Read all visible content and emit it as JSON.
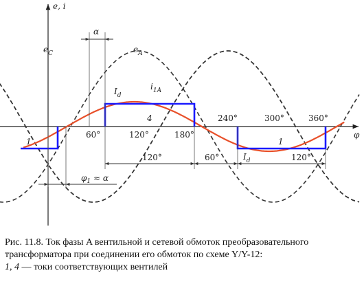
{
  "axes": {
    "y_label": "e, i",
    "x_label": "φ",
    "ticks": [
      "60°",
      "120°",
      "180°",
      "240°",
      "300°",
      "360°"
    ]
  },
  "curve_labels": {
    "e_c": "e",
    "e_c_sub": "C",
    "e_a": "e",
    "e_a_sub": "A",
    "i_1a": "i",
    "i_1a_sub": "1A",
    "i_d_top": "I",
    "i_d_top_sub": "d",
    "i_d_bottom": "I",
    "i_d_bottom_sub": "d"
  },
  "pulse_labels": {
    "left": "1",
    "positive": "4",
    "negative": "1"
  },
  "dimensions": {
    "alpha": "α",
    "phi": "φ",
    "phi_sub": "1",
    "phi_rest": " ≈ α",
    "width_120_a": "120°",
    "width_60": "60°",
    "width_120_b": "120°"
  },
  "caption": {
    "line1": "Рис. 11.8. Ток фазы A вентильной и сетевой обмоток преобразовательного",
    "line2": "трансформатора при соединении его обмоток по схеме Y/Y-12:",
    "line3_italic": "1, 4",
    "line3_rest": " — токи соответствующих вентилей"
  },
  "colors": {
    "current_curve": "#e8502a",
    "pulses": "#1a1aff",
    "voltage": "#333333"
  }
}
